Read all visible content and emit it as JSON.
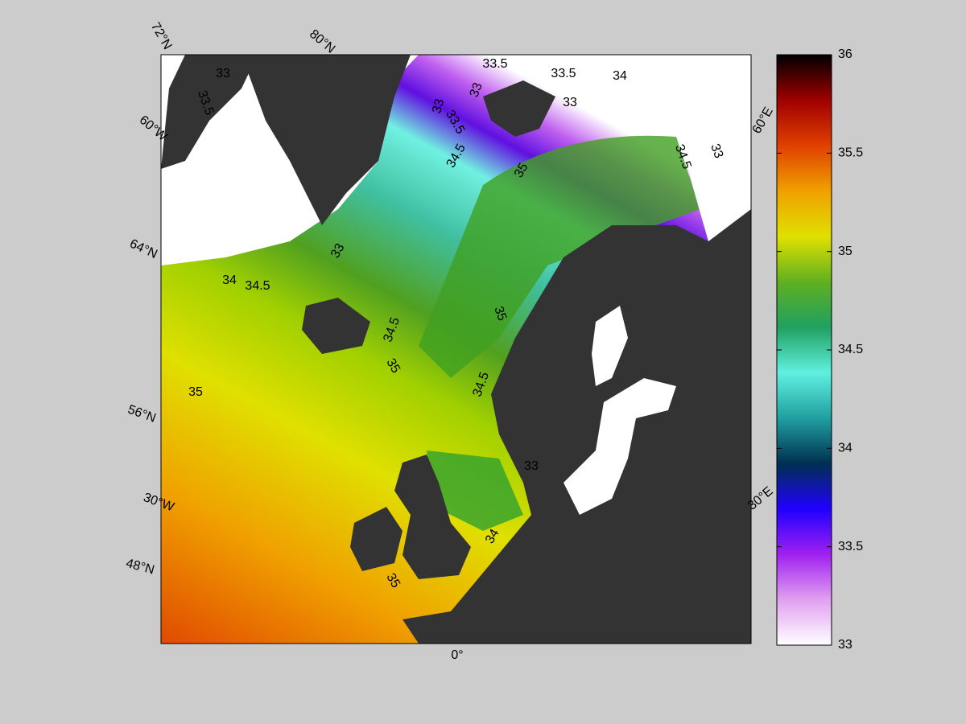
{
  "map": {
    "grid_labels": [
      "72°N",
      "80°N",
      "60°W",
      "64°N",
      "56°N",
      "30°W",
      "48°N",
      "0°",
      "30°E",
      "60°E"
    ],
    "contour_labels": [
      33,
      33.5,
      33.5,
      33.5,
      33,
      33,
      33.5,
      34,
      33,
      34.5,
      35,
      34.5,
      33,
      33,
      34.5,
      34,
      34.5,
      35,
      35,
      34.5,
      35,
      35,
      34,
      33
    ],
    "colorbar": {
      "range": [
        33,
        36
      ],
      "ticks": [
        33,
        33.5,
        34,
        34.5,
        35,
        35.5,
        36
      ],
      "colormap": [
        "#ffffff",
        "#e0a0f0",
        "#a020f0",
        "#2000ff",
        "#003050",
        "#20a0a0",
        "#60f0e0",
        "#20a060",
        "#60b020",
        "#e0e000",
        "#f0a000",
        "#e04000",
        "#a00000",
        "#000000"
      ]
    }
  }
}
